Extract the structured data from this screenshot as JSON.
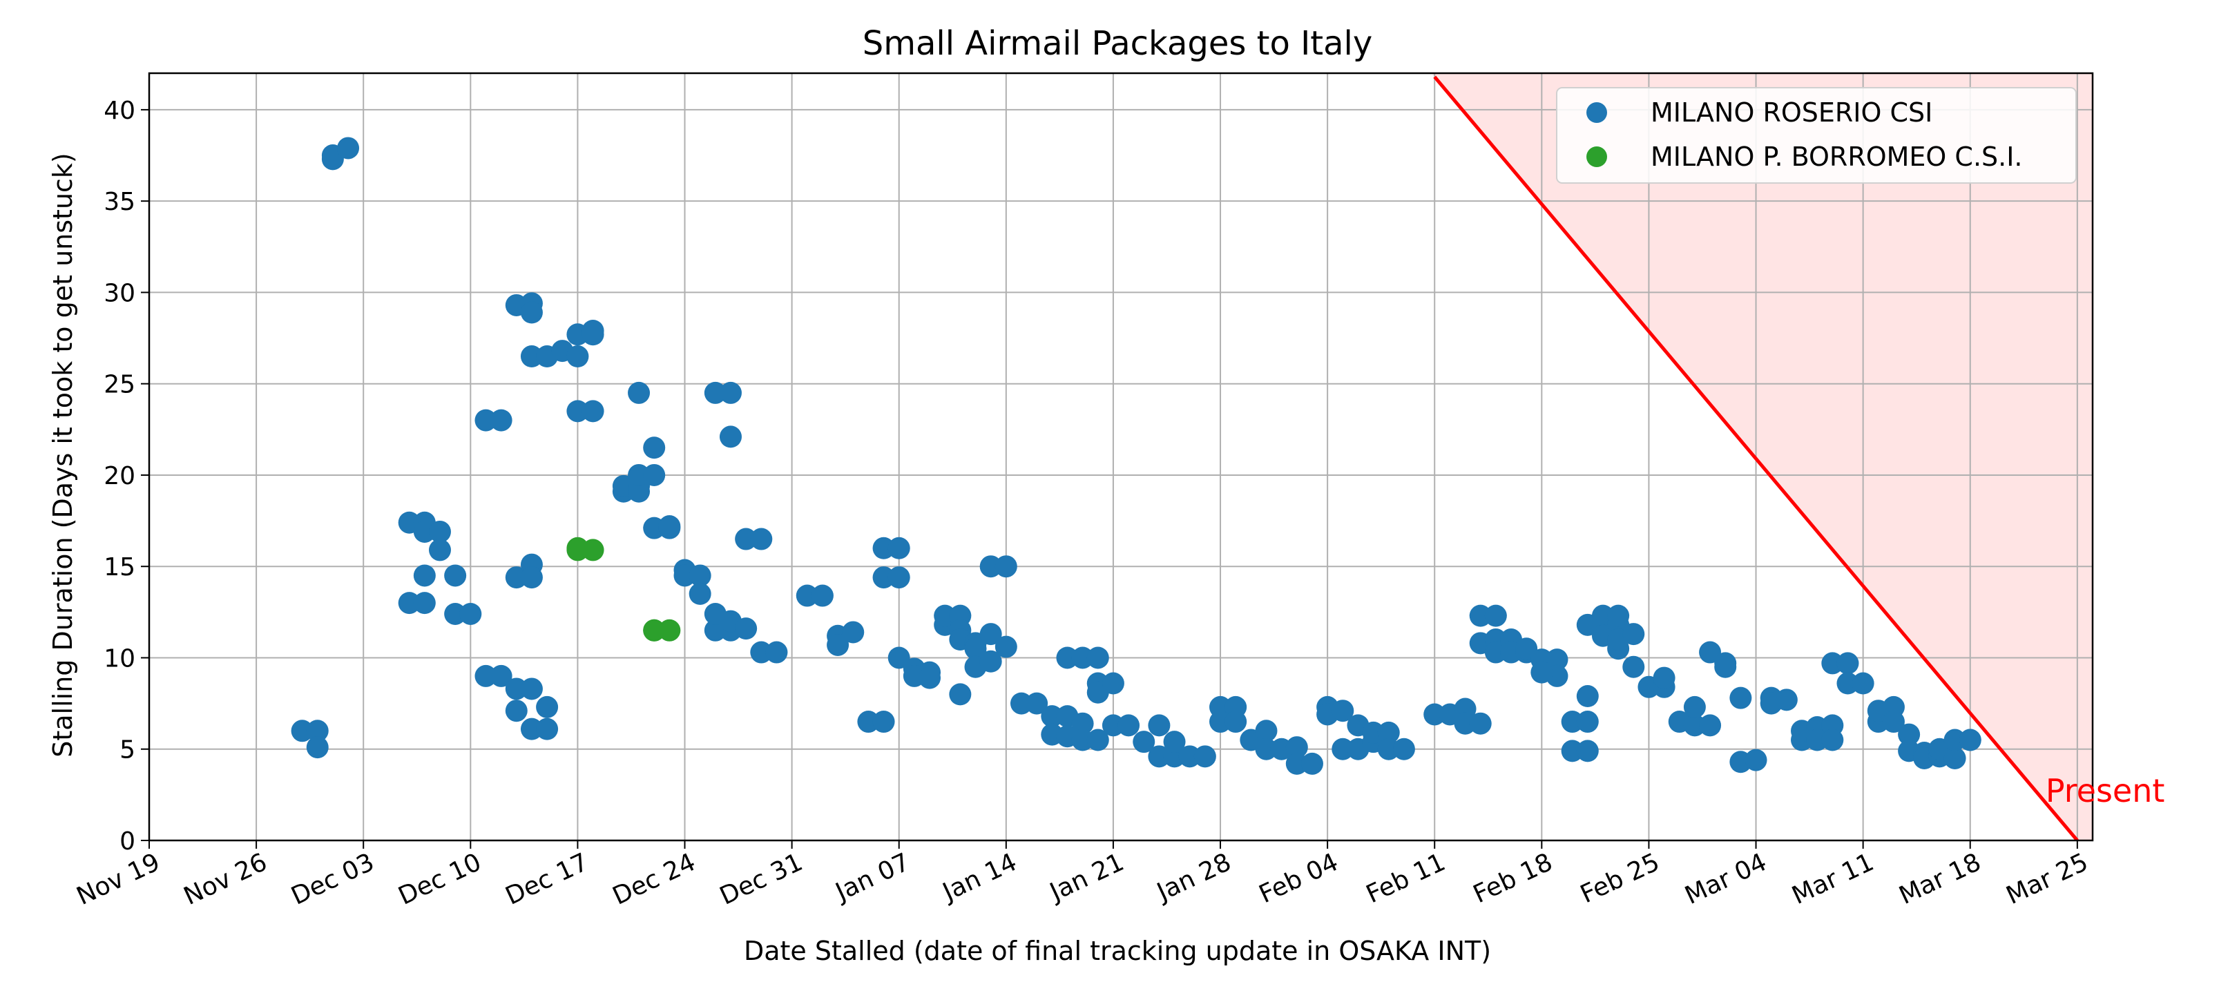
{
  "chart_data": {
    "type": "scatter",
    "title": "Small Airmail Packages to Italy",
    "xlabel": "Date Stalled (date of final tracking update in OSAKA INT)",
    "ylabel": "Stalling Duration (Days it took to get unstuck)",
    "x_axis_type": "date",
    "xlim": [
      "2023-11-19",
      "2024-03-25"
    ],
    "ylim": [
      0,
      42
    ],
    "x_tick_labels": [
      "Nov 19",
      "Nov 26",
      "Dec 03",
      "Dec 10",
      "Dec 17",
      "Dec 24",
      "Dec 31",
      "Jan 07",
      "Jan 14",
      "Jan 21",
      "Jan 28",
      "Feb 04",
      "Feb 11",
      "Feb 18",
      "Feb 25",
      "Mar 04",
      "Mar 11",
      "Mar 18",
      "Mar 25"
    ],
    "y_ticks": [
      0,
      5,
      10,
      15,
      20,
      25,
      30,
      35,
      40
    ],
    "grid": true,
    "legend_position": "top-right",
    "series": [
      {
        "name": "MILANO ROSERIO CSI",
        "color": "#1f77b4",
        "points": [
          [
            "2023-11-29",
            6.0
          ],
          [
            "2023-11-30",
            6.0
          ],
          [
            "2023-11-30",
            5.1
          ],
          [
            "2023-12-01",
            37.3
          ],
          [
            "2023-12-01",
            37.5
          ],
          [
            "2023-12-02",
            37.9
          ],
          [
            "2023-12-06",
            13.0
          ],
          [
            "2023-12-06",
            17.4
          ],
          [
            "2023-12-07",
            17.4
          ],
          [
            "2023-12-07",
            13.0
          ],
          [
            "2023-12-07",
            14.5
          ],
          [
            "2023-12-07",
            16.9
          ],
          [
            "2023-12-08",
            16.9
          ],
          [
            "2023-12-08",
            15.9
          ],
          [
            "2023-12-09",
            14.5
          ],
          [
            "2023-12-09",
            12.4
          ],
          [
            "2023-12-10",
            12.4
          ],
          [
            "2023-12-11",
            9.0
          ],
          [
            "2023-12-11",
            23.0
          ],
          [
            "2023-12-12",
            9.0
          ],
          [
            "2023-12-12",
            23.0
          ],
          [
            "2023-12-13",
            29.3
          ],
          [
            "2023-12-13",
            14.4
          ],
          [
            "2023-12-13",
            7.1
          ],
          [
            "2023-12-13",
            8.3
          ],
          [
            "2023-12-14",
            29.4
          ],
          [
            "2023-12-14",
            28.9
          ],
          [
            "2023-12-14",
            15.1
          ],
          [
            "2023-12-14",
            14.4
          ],
          [
            "2023-12-14",
            8.3
          ],
          [
            "2023-12-14",
            6.1
          ],
          [
            "2023-12-14",
            26.5
          ],
          [
            "2023-12-15",
            26.5
          ],
          [
            "2023-12-15",
            7.3
          ],
          [
            "2023-12-15",
            6.1
          ],
          [
            "2023-12-16",
            26.8
          ],
          [
            "2023-12-17",
            26.5
          ],
          [
            "2023-12-17",
            23.5
          ],
          [
            "2023-12-18",
            23.5
          ],
          [
            "2023-12-17",
            27.7
          ],
          [
            "2023-12-18",
            27.7
          ],
          [
            "2023-12-18",
            27.9
          ],
          [
            "2023-12-20",
            19.1
          ],
          [
            "2023-12-20",
            19.4
          ],
          [
            "2023-12-21",
            19.4
          ],
          [
            "2023-12-21",
            19.1
          ],
          [
            "2023-12-21",
            24.5
          ],
          [
            "2023-12-21",
            20.0
          ],
          [
            "2023-12-22",
            20.0
          ],
          [
            "2023-12-22",
            21.5
          ],
          [
            "2023-12-22",
            17.1
          ],
          [
            "2023-12-23",
            17.1
          ],
          [
            "2023-12-23",
            17.2
          ],
          [
            "2023-12-24",
            14.8
          ],
          [
            "2023-12-24",
            14.5
          ],
          [
            "2023-12-25",
            14.5
          ],
          [
            "2023-12-25",
            13.5
          ],
          [
            "2023-12-26",
            11.5
          ],
          [
            "2023-12-26",
            12.4
          ],
          [
            "2023-12-26",
            24.5
          ],
          [
            "2023-12-27",
            24.5
          ],
          [
            "2023-12-27",
            22.1
          ],
          [
            "2023-12-27",
            11.5
          ],
          [
            "2023-12-27",
            12.0
          ],
          [
            "2023-12-28",
            11.6
          ],
          [
            "2023-12-28",
            16.5
          ],
          [
            "2023-12-29",
            16.5
          ],
          [
            "2023-12-29",
            10.3
          ],
          [
            "2023-12-30",
            10.3
          ],
          [
            "2024-01-01",
            13.4
          ],
          [
            "2024-01-02",
            13.4
          ],
          [
            "2024-01-03",
            11.2
          ],
          [
            "2024-01-03",
            10.7
          ],
          [
            "2024-01-04",
            11.4
          ],
          [
            "2024-01-05",
            6.5
          ],
          [
            "2024-01-06",
            6.5
          ],
          [
            "2024-01-06",
            16.0
          ],
          [
            "2024-01-06",
            14.4
          ],
          [
            "2024-01-07",
            16.0
          ],
          [
            "2024-01-07",
            14.4
          ],
          [
            "2024-01-07",
            10.0
          ],
          [
            "2024-01-08",
            9.4
          ],
          [
            "2024-01-08",
            9.0
          ],
          [
            "2024-01-09",
            9.2
          ],
          [
            "2024-01-09",
            8.9
          ],
          [
            "2024-01-10",
            11.8
          ],
          [
            "2024-01-10",
            12.3
          ],
          [
            "2024-01-11",
            12.3
          ],
          [
            "2024-01-11",
            11.5
          ],
          [
            "2024-01-11",
            8.0
          ],
          [
            "2024-01-11",
            11.0
          ],
          [
            "2024-01-12",
            10.8
          ],
          [
            "2024-01-12",
            10.5
          ],
          [
            "2024-01-12",
            9.5
          ],
          [
            "2024-01-13",
            9.8
          ],
          [
            "2024-01-13",
            11.3
          ],
          [
            "2024-01-13",
            15.0
          ],
          [
            "2024-01-14",
            15.0
          ],
          [
            "2024-01-14",
            10.6
          ],
          [
            "2024-01-15",
            7.5
          ],
          [
            "2024-01-16",
            7.5
          ],
          [
            "2024-01-17",
            6.8
          ],
          [
            "2024-01-17",
            5.8
          ],
          [
            "2024-01-18",
            6.8
          ],
          [
            "2024-01-18",
            5.7
          ],
          [
            "2024-01-18",
            10.0
          ],
          [
            "2024-01-19",
            10.0
          ],
          [
            "2024-01-19",
            6.4
          ],
          [
            "2024-01-19",
            5.5
          ],
          [
            "2024-01-20",
            10.0
          ],
          [
            "2024-01-20",
            5.5
          ],
          [
            "2024-01-20",
            8.6
          ],
          [
            "2024-01-20",
            8.1
          ],
          [
            "2024-01-21",
            8.6
          ],
          [
            "2024-01-21",
            6.3
          ],
          [
            "2024-01-22",
            6.3
          ],
          [
            "2024-01-23",
            5.4
          ],
          [
            "2024-01-24",
            6.3
          ],
          [
            "2024-01-24",
            4.6
          ],
          [
            "2024-01-25",
            4.6
          ],
          [
            "2024-01-25",
            5.4
          ],
          [
            "2024-01-26",
            4.6
          ],
          [
            "2024-01-27",
            4.6
          ],
          [
            "2024-01-28",
            7.3
          ],
          [
            "2024-01-28",
            6.5
          ],
          [
            "2024-01-29",
            7.3
          ],
          [
            "2024-01-29",
            6.5
          ],
          [
            "2024-01-30",
            5.5
          ],
          [
            "2024-01-31",
            6.0
          ],
          [
            "2024-01-31",
            5.0
          ],
          [
            "2024-02-01",
            5.0
          ],
          [
            "2024-02-02",
            5.1
          ],
          [
            "2024-02-02",
            4.2
          ],
          [
            "2024-02-03",
            4.2
          ],
          [
            "2024-02-04",
            7.3
          ],
          [
            "2024-02-04",
            6.9
          ],
          [
            "2024-02-05",
            7.1
          ],
          [
            "2024-02-05",
            5.0
          ],
          [
            "2024-02-06",
            6.3
          ],
          [
            "2024-02-06",
            5.0
          ],
          [
            "2024-02-07",
            5.4
          ],
          [
            "2024-02-07",
            5.9
          ],
          [
            "2024-02-08",
            5.9
          ],
          [
            "2024-02-08",
            5.0
          ],
          [
            "2024-02-09",
            5.0
          ],
          [
            "2024-02-11",
            6.9
          ],
          [
            "2024-02-12",
            6.9
          ],
          [
            "2024-02-13",
            7.2
          ],
          [
            "2024-02-13",
            6.4
          ],
          [
            "2024-02-14",
            6.4
          ],
          [
            "2024-02-14",
            12.3
          ],
          [
            "2024-02-14",
            10.8
          ],
          [
            "2024-02-15",
            12.3
          ],
          [
            "2024-02-15",
            11.0
          ],
          [
            "2024-02-15",
            10.3
          ],
          [
            "2024-02-16",
            11.0
          ],
          [
            "2024-02-16",
            10.3
          ],
          [
            "2024-02-17",
            10.3
          ],
          [
            "2024-02-17",
            10.5
          ],
          [
            "2024-02-18",
            9.9
          ],
          [
            "2024-02-19",
            9.9
          ],
          [
            "2024-02-19",
            9.0
          ],
          [
            "2024-02-18",
            9.2
          ],
          [
            "2024-02-20",
            6.5
          ],
          [
            "2024-02-20",
            4.9
          ],
          [
            "2024-02-21",
            6.5
          ],
          [
            "2024-02-21",
            4.9
          ],
          [
            "2024-02-21",
            7.9
          ],
          [
            "2024-02-21",
            11.8
          ],
          [
            "2024-02-22",
            12.3
          ],
          [
            "2024-02-22",
            11.2
          ],
          [
            "2024-02-23",
            11.8
          ],
          [
            "2024-02-23",
            12.3
          ],
          [
            "2024-02-23",
            10.5
          ],
          [
            "2024-02-23",
            11.0
          ],
          [
            "2024-02-24",
            11.3
          ],
          [
            "2024-02-24",
            9.5
          ],
          [
            "2024-02-25",
            8.4
          ],
          [
            "2024-02-26",
            8.4
          ],
          [
            "2024-02-26",
            8.9
          ],
          [
            "2024-02-27",
            6.5
          ],
          [
            "2024-02-28",
            6.3
          ],
          [
            "2024-02-28",
            7.3
          ],
          [
            "2024-02-29",
            6.3
          ],
          [
            "2024-02-29",
            10.3
          ],
          [
            "2024-03-01",
            9.7
          ],
          [
            "2024-03-01",
            9.5
          ],
          [
            "2024-03-02",
            7.8
          ],
          [
            "2024-03-02",
            4.3
          ],
          [
            "2024-03-03",
            4.4
          ],
          [
            "2024-03-04",
            7.8
          ],
          [
            "2024-03-04",
            7.5
          ],
          [
            "2024-03-05",
            7.7
          ],
          [
            "2024-03-06",
            5.5
          ],
          [
            "2024-03-06",
            6.0
          ],
          [
            "2024-03-07",
            6.2
          ],
          [
            "2024-03-07",
            5.5
          ],
          [
            "2024-03-08",
            6.3
          ],
          [
            "2024-03-08",
            5.5
          ],
          [
            "2024-03-08",
            9.7
          ],
          [
            "2024-03-09",
            9.7
          ],
          [
            "2024-03-09",
            8.6
          ],
          [
            "2024-03-10",
            8.6
          ],
          [
            "2024-03-11",
            6.5
          ],
          [
            "2024-03-11",
            7.1
          ],
          [
            "2024-03-12",
            7.3
          ],
          [
            "2024-03-12",
            6.5
          ],
          [
            "2024-03-13",
            5.8
          ],
          [
            "2024-03-13",
            4.9
          ],
          [
            "2024-03-14",
            4.8
          ],
          [
            "2024-03-14",
            4.5
          ],
          [
            "2024-03-15",
            4.6
          ],
          [
            "2024-03-15",
            5.0
          ],
          [
            "2024-03-16",
            4.5
          ],
          [
            "2024-03-16",
            5.5
          ],
          [
            "2024-03-17",
            5.5
          ],
          [
            "2024-03-17",
            5.5
          ]
        ]
      },
      {
        "name": "MILANO P. BORROMEO C.S.I.",
        "color": "#2ca02c",
        "points": [
          [
            "2023-12-17",
            15.9
          ],
          [
            "2023-12-17",
            16.0
          ],
          [
            "2023-12-18",
            15.9
          ],
          [
            "2023-12-22",
            11.5
          ],
          [
            "2023-12-22",
            11.5
          ],
          [
            "2023-12-23",
            11.5
          ]
        ]
      }
    ],
    "annotations": [
      {
        "text": "Present",
        "color": "#ff0000",
        "line_from": [
          "2024-02-11",
          41.8
        ],
        "line_to": [
          "2024-03-24",
          0
        ],
        "shaded_region": "above line",
        "shade_color": "#ffe4e4"
      }
    ]
  }
}
